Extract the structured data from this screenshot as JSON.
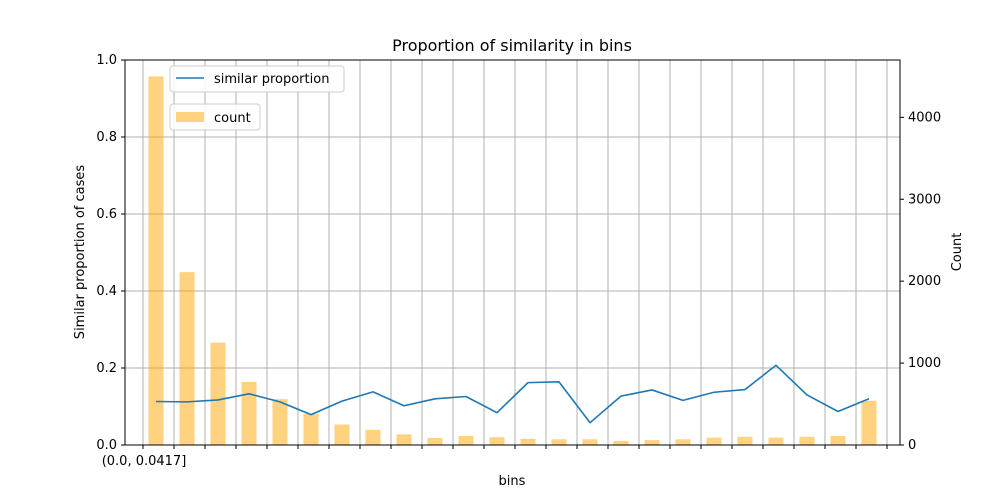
{
  "chart_data": {
    "type": "bar+line",
    "title": "Proportion of similarity in bins",
    "xlabel": "bins",
    "ylabel_left": "Similar proportion of cases",
    "ylabel_right": "Count",
    "x_tick_labels": [
      "(0.0, 0.0417]"
    ],
    "ylim_left": [
      0,
      1.0
    ],
    "ylim_right": [
      0,
      4700
    ],
    "yticks_left": [
      "0.0",
      "0.2",
      "0.4",
      "0.6",
      "0.8",
      "1.0"
    ],
    "yticks_left_values": [
      0,
      0.2,
      0.4,
      0.6,
      0.8,
      1.0
    ],
    "yticks_right": [
      "0",
      "1000",
      "2000",
      "3000",
      "4000"
    ],
    "yticks_right_values": [
      0,
      1000,
      2000,
      3000,
      4000
    ],
    "grid": true,
    "legend": [
      {
        "label": "similar proportion",
        "type": "line"
      },
      {
        "label": "count",
        "type": "bar"
      }
    ],
    "legend_placement": "upper-left",
    "series": [
      {
        "name": "similar proportion",
        "type": "line",
        "axis": "left",
        "color": "#1f77b4",
        "values": [
          0.113,
          0.112,
          0.117,
          0.133,
          0.112,
          0.079,
          0.114,
          0.138,
          0.102,
          0.12,
          0.126,
          0.084,
          0.162,
          0.164,
          0.058,
          0.127,
          0.143,
          0.116,
          0.137,
          0.144,
          0.207,
          0.13,
          0.087,
          0.12
        ]
      },
      {
        "name": "count",
        "type": "bar",
        "axis": "right",
        "color": "#ffa500",
        "values": [
          4500,
          2110,
          1250,
          770,
          560,
          380,
          250,
          185,
          130,
          85,
          110,
          95,
          75,
          70,
          70,
          50,
          60,
          70,
          90,
          100,
          90,
          100,
          110,
          540
        ]
      }
    ]
  }
}
